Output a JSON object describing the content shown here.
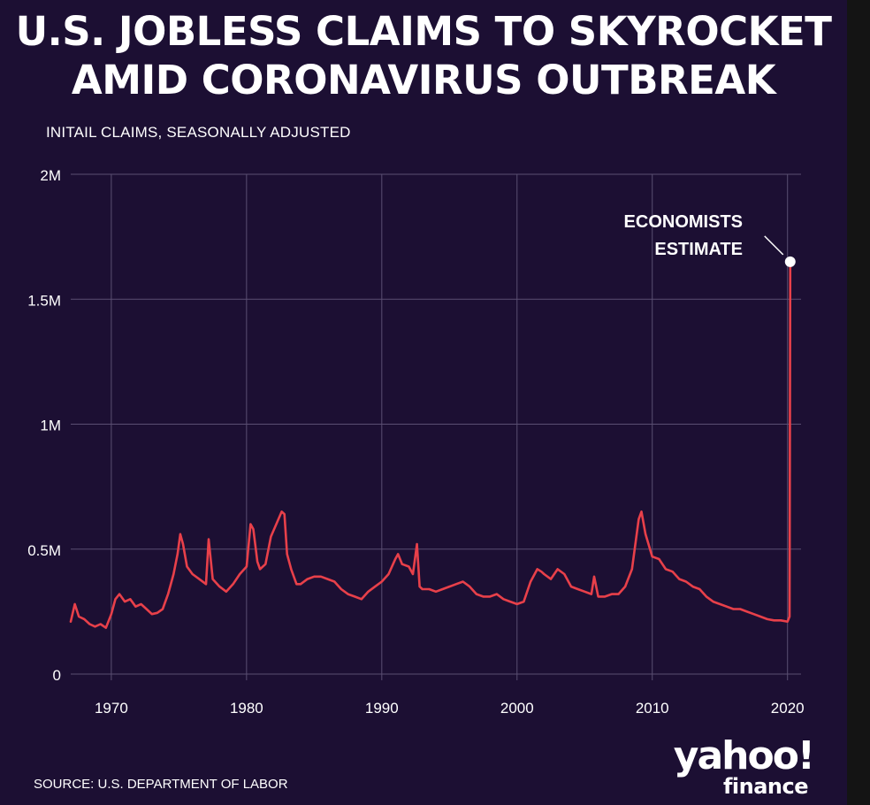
{
  "header": {
    "title_line1": "U.S. JOBLESS CLAIMS TO SKYROCKET",
    "title_line2": "AMID CORONAVIRUS OUTBREAK",
    "subtitle": "INITAIL CLAIMS, SEASONALLY ADJUSTED"
  },
  "footer": {
    "source": "SOURCE:  U.S. DEPARTMENT OF LABOR",
    "logo_top": "yahoo!",
    "logo_bottom": "finance"
  },
  "colors": {
    "background": "#1c0f33",
    "line": "#e8404a",
    "grid": "#5a4f72",
    "text": "#ffffff"
  },
  "chart_data": {
    "type": "line",
    "title": "U.S. JOBLESS CLAIMS TO SKYROCKET AMID CORONAVIRUS OUTBREAK",
    "ylabel": "INITAIL CLAIMS, SEASONALLY ADJUSTED",
    "xlim": [
      1967,
      2021
    ],
    "ylim": [
      0,
      2000000
    ],
    "x_ticks": [
      1970,
      1980,
      1990,
      2000,
      2010,
      2020
    ],
    "x_tick_labels": [
      "1970",
      "1980",
      "1990",
      "2000",
      "2010",
      "2020"
    ],
    "y_ticks": [
      0,
      500000,
      1000000,
      1500000,
      2000000
    ],
    "y_tick_labels": [
      "0",
      "0.5M",
      "1M",
      "1.5M",
      "2M"
    ],
    "grid": true,
    "annotation": {
      "line1": "ECONOMISTS",
      "line2": "ESTIMATE",
      "x": 2020.2,
      "y": 1650000
    },
    "series": [
      {
        "x": [
          1967.0,
          1967.3,
          1967.6,
          1968.0,
          1968.4,
          1968.8,
          1969.2,
          1969.6,
          1970.0,
          1970.3,
          1970.6,
          1971.0,
          1971.4,
          1971.8,
          1972.2,
          1972.6,
          1973.0,
          1973.4,
          1973.8,
          1974.2,
          1974.6,
          1974.9,
          1975.1,
          1975.3,
          1975.6,
          1976.0,
          1976.5,
          1977.0,
          1977.2,
          1977.5,
          1978.0,
          1978.5,
          1979.0,
          1979.5,
          1980.0,
          1980.3,
          1980.5,
          1980.8,
          1981.0,
          1981.4,
          1981.8,
          1982.2,
          1982.6,
          1982.8,
          1983.0,
          1983.3,
          1983.7,
          1984.0,
          1984.5,
          1985.0,
          1985.5,
          1986.0,
          1986.5,
          1987.0,
          1987.5,
          1988.0,
          1988.5,
          1989.0,
          1989.5,
          1990.0,
          1990.5,
          1991.0,
          1991.2,
          1991.5,
          1992.0,
          1992.3,
          1992.6,
          1992.8,
          1993.0,
          1993.5,
          1994.0,
          1994.5,
          1995.0,
          1995.5,
          1996.0,
          1996.5,
          1997.0,
          1997.5,
          1998.0,
          1998.5,
          1999.0,
          1999.5,
          2000.0,
          2000.5,
          2001.0,
          2001.5,
          2001.8,
          2002.0,
          2002.5,
          2003.0,
          2003.5,
          2004.0,
          2004.5,
          2005.0,
          2005.5,
          2005.7,
          2006.0,
          2006.5,
          2007.0,
          2007.5,
          2008.0,
          2008.5,
          2009.0,
          2009.2,
          2009.5,
          2010.0,
          2010.5,
          2011.0,
          2011.5,
          2012.0,
          2012.5,
          2013.0,
          2013.5,
          2014.0,
          2014.5,
          2015.0,
          2015.5,
          2016.0,
          2016.5,
          2017.0,
          2017.5,
          2018.0,
          2018.5,
          2019.0,
          2019.5,
          2020.0,
          2020.15,
          2020.2
        ],
        "y": [
          210000,
          280000,
          230000,
          220000,
          200000,
          190000,
          200000,
          185000,
          240000,
          300000,
          320000,
          290000,
          300000,
          270000,
          280000,
          260000,
          240000,
          245000,
          260000,
          320000,
          400000,
          480000,
          560000,
          520000,
          430000,
          400000,
          380000,
          360000,
          540000,
          380000,
          350000,
          330000,
          360000,
          400000,
          430000,
          600000,
          580000,
          450000,
          420000,
          440000,
          550000,
          600000,
          650000,
          640000,
          480000,
          420000,
          360000,
          360000,
          380000,
          390000,
          390000,
          380000,
          370000,
          340000,
          320000,
          310000,
          300000,
          330000,
          350000,
          370000,
          400000,
          460000,
          480000,
          440000,
          430000,
          400000,
          520000,
          350000,
          340000,
          340000,
          330000,
          340000,
          350000,
          360000,
          370000,
          350000,
          320000,
          310000,
          310000,
          320000,
          300000,
          290000,
          280000,
          290000,
          370000,
          420000,
          410000,
          400000,
          380000,
          420000,
          400000,
          350000,
          340000,
          330000,
          320000,
          390000,
          310000,
          310000,
          320000,
          320000,
          350000,
          420000,
          620000,
          650000,
          560000,
          470000,
          460000,
          420000,
          410000,
          380000,
          370000,
          350000,
          340000,
          310000,
          290000,
          280000,
          270000,
          260000,
          260000,
          250000,
          240000,
          230000,
          220000,
          215000,
          215000,
          210000,
          230000,
          1650000
        ]
      }
    ]
  }
}
